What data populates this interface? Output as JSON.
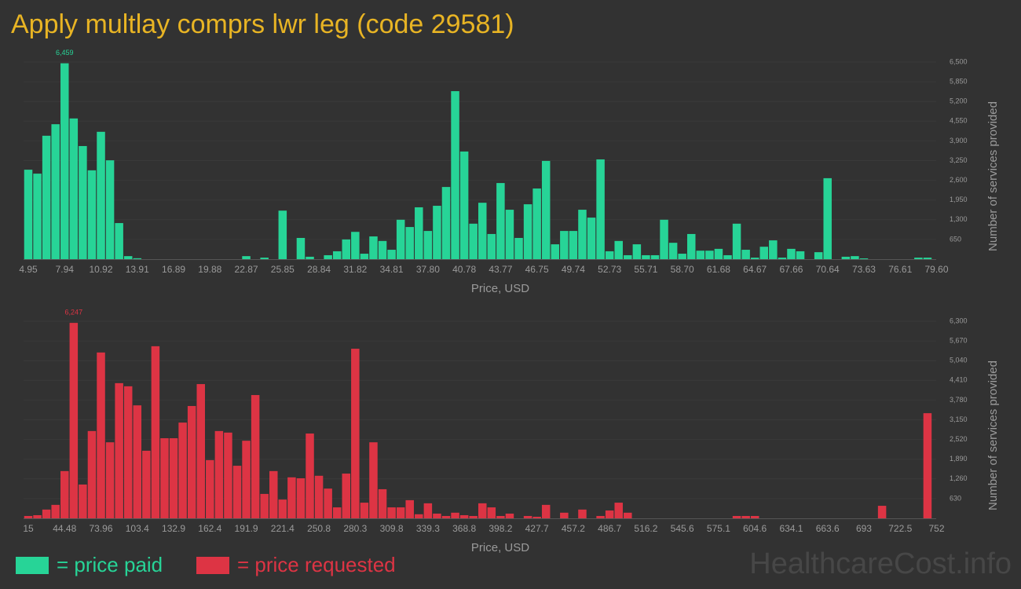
{
  "title": "Apply multlay comprs lwr leg (code 29581)",
  "watermark": "HealthcareCost.info",
  "chart_data": [
    {
      "type": "bar",
      "x_label": "Price, USD",
      "y_label": "Number of services provided",
      "categories": [
        "4.95",
        null,
        null,
        null,
        "7.94",
        null,
        null,
        null,
        "10.92",
        null,
        null,
        null,
        "13.91",
        null,
        null,
        null,
        "16.89",
        null,
        null,
        null,
        "19.88",
        null,
        null,
        null,
        "22.87",
        null,
        null,
        null,
        "25.85",
        null,
        null,
        null,
        "28.84",
        null,
        null,
        null,
        "31.82",
        null,
        null,
        null,
        "34.81",
        null,
        null,
        null,
        "37.80",
        null,
        null,
        null,
        "40.78",
        null,
        null,
        null,
        "43.77",
        null,
        null,
        null,
        "46.75",
        null,
        null,
        null,
        "49.74",
        null,
        null,
        null,
        "52.73",
        null,
        null,
        null,
        "55.71",
        null,
        null,
        null,
        "58.70",
        null,
        null,
        null,
        "61.68",
        null,
        null,
        null,
        "64.67",
        null,
        null,
        null,
        "67.66",
        null,
        null,
        null,
        "70.64",
        null,
        null,
        null,
        "73.63",
        null,
        null,
        null,
        "76.61",
        null,
        null,
        null,
        "79.60"
      ],
      "series": [
        {
          "name": "= price paid",
          "color": "#27d497",
          "values": [
            2950,
            2820,
            4070,
            4450,
            6459,
            4640,
            3730,
            2930,
            4200,
            3260,
            1190,
            100,
            30,
            0,
            0,
            0,
            0,
            0,
            0,
            0,
            0,
            0,
            0,
            0,
            100,
            0,
            50,
            0,
            1600,
            0,
            700,
            80,
            0,
            130,
            260,
            650,
            900,
            180,
            750,
            600,
            310,
            1300,
            1060,
            1710,
            930,
            1760,
            2380,
            5540,
            3550,
            1170,
            1860,
            830,
            2510,
            1630,
            700,
            1810,
            2330,
            3240,
            490,
            930,
            930,
            1630,
            1370,
            3290,
            260,
            600,
            130,
            490,
            130,
            130,
            1300,
            540,
            180,
            830,
            280,
            280,
            340,
            130,
            1170,
            310,
            50,
            410,
            620,
            50,
            340,
            260,
            0,
            230,
            2670,
            0,
            80,
            100,
            25,
            0,
            0,
            0,
            0,
            0,
            50,
            50,
            0
          ],
          "value_labels": [
            null,
            null,
            null,
            null,
            "6,459",
            null,
            null,
            null,
            null,
            null,
            null,
            null,
            null,
            null,
            null,
            null,
            null,
            null,
            null,
            null,
            null,
            null,
            null,
            null,
            null,
            null,
            null,
            null,
            null,
            null,
            null,
            null,
            null,
            null,
            null,
            null,
            null,
            null,
            null,
            null,
            null,
            null,
            null,
            null,
            null,
            null,
            null,
            null,
            null,
            null,
            null,
            null,
            null,
            null,
            null,
            null,
            null,
            null,
            null,
            null,
            null,
            null,
            null,
            null,
            null,
            null,
            null,
            null,
            null,
            null,
            null,
            null,
            null,
            null,
            null,
            null,
            null,
            null,
            null,
            null,
            null,
            null,
            null,
            null,
            null,
            null,
            null,
            null,
            null,
            null,
            null,
            null,
            null,
            null,
            null,
            null,
            null,
            null,
            null,
            null,
            null
          ]
        }
      ],
      "ylim": [
        0,
        6500
      ],
      "yticks": [
        650,
        {
          "value": 1300,
          "label": "1,300"
        },
        {
          "value": 1950,
          "label": "1,950"
        },
        {
          "value": 2600,
          "label": "2,600"
        },
        {
          "value": 3250,
          "label": "3,250"
        },
        {
          "value": 3900,
          "label": "3,900"
        },
        {
          "value": 4550,
          "label": "4,550"
        },
        {
          "value": 5200,
          "label": "5,200"
        },
        {
          "value": 5850,
          "label": "5,850"
        },
        {
          "value": 6500,
          "label": "6,500"
        }
      ],
      "grid": true
    },
    {
      "type": "bar",
      "x_label": "Price, USD",
      "y_label": "Number of services provided",
      "categories": [
        "15",
        null,
        null,
        null,
        "44.48",
        null,
        null,
        null,
        "73.96",
        null,
        null,
        null,
        "103.4",
        null,
        null,
        null,
        "132.9",
        null,
        null,
        null,
        "162.4",
        null,
        null,
        null,
        "191.9",
        null,
        null,
        null,
        "221.4",
        null,
        null,
        null,
        "250.8",
        null,
        null,
        null,
        "280.3",
        null,
        null,
        null,
        "309.8",
        null,
        null,
        null,
        "339.3",
        null,
        null,
        null,
        "368.8",
        null,
        null,
        null,
        "398.2",
        null,
        null,
        null,
        "427.7",
        null,
        null,
        null,
        "457.2",
        null,
        null,
        null,
        "486.7",
        null,
        null,
        null,
        "516.2",
        null,
        null,
        null,
        "545.6",
        null,
        null,
        null,
        "575.1",
        null,
        null,
        null,
        "604.6",
        null,
        null,
        null,
        "634.1",
        null,
        null,
        null,
        "663.6",
        null,
        null,
        null,
        "693",
        null,
        null,
        null,
        "722.5",
        null,
        null,
        null,
        "752"
      ],
      "series": [
        {
          "name": "= price requested",
          "color": "#dd3444",
          "values": [
            75,
            100,
            280,
            430,
            1510,
            6247,
            1080,
            2790,
            5300,
            2430,
            4320,
            4220,
            3610,
            2160,
            5500,
            2560,
            2560,
            3060,
            3590,
            4290,
            1860,
            2790,
            2740,
            1680,
            2480,
            3940,
            780,
            1510,
            600,
            1310,
            1280,
            2710,
            1360,
            950,
            350,
            1430,
            5420,
            500,
            2430,
            930,
            350,
            350,
            580,
            130,
            480,
            150,
            75,
            180,
            100,
            75,
            480,
            350,
            75,
            150,
            0,
            75,
            50,
            430,
            0,
            180,
            0,
            280,
            0,
            75,
            250,
            500,
            180,
            0,
            0,
            0,
            0,
            0,
            0,
            0,
            0,
            0,
            0,
            0,
            75,
            75,
            75,
            0,
            0,
            0,
            0,
            0,
            0,
            0,
            0,
            0,
            0,
            0,
            0,
            0,
            400,
            0,
            0,
            0,
            0,
            3360,
            0
          ],
          "value_labels": [
            null,
            null,
            null,
            null,
            null,
            "6,247",
            null,
            null,
            null,
            null,
            null,
            null,
            null,
            null,
            null,
            null,
            null,
            null,
            null,
            null,
            null,
            null,
            null,
            null,
            null,
            null,
            null,
            null,
            null,
            null,
            null,
            null,
            null,
            null,
            null,
            null,
            null,
            null,
            null,
            null,
            null,
            null,
            null,
            null,
            null,
            null,
            null,
            null,
            null,
            null,
            null,
            null,
            null,
            null,
            null,
            null,
            null,
            null,
            null,
            null,
            null,
            null,
            null,
            null,
            null,
            null,
            null,
            null,
            null,
            null,
            null,
            null,
            null,
            null,
            null,
            null,
            null,
            null,
            null,
            null,
            null,
            null,
            null,
            null,
            null,
            null,
            null,
            null,
            null,
            null,
            null,
            null,
            null,
            null,
            null,
            null,
            null,
            null,
            null,
            null,
            null
          ]
        }
      ],
      "ylim": [
        0,
        6300
      ],
      "yticks": [
        630,
        {
          "value": 1260,
          "label": "1,260"
        },
        {
          "value": 1890,
          "label": "1,890"
        },
        {
          "value": 2520,
          "label": "2,520"
        },
        {
          "value": 3150,
          "label": "3,150"
        },
        {
          "value": 3780,
          "label": "3,780"
        },
        {
          "value": 4410,
          "label": "4,410"
        },
        {
          "value": 5040,
          "label": "5,040"
        },
        {
          "value": 5670,
          "label": "5,670"
        },
        {
          "value": 6300,
          "label": "6,300"
        }
      ],
      "grid": true
    }
  ]
}
